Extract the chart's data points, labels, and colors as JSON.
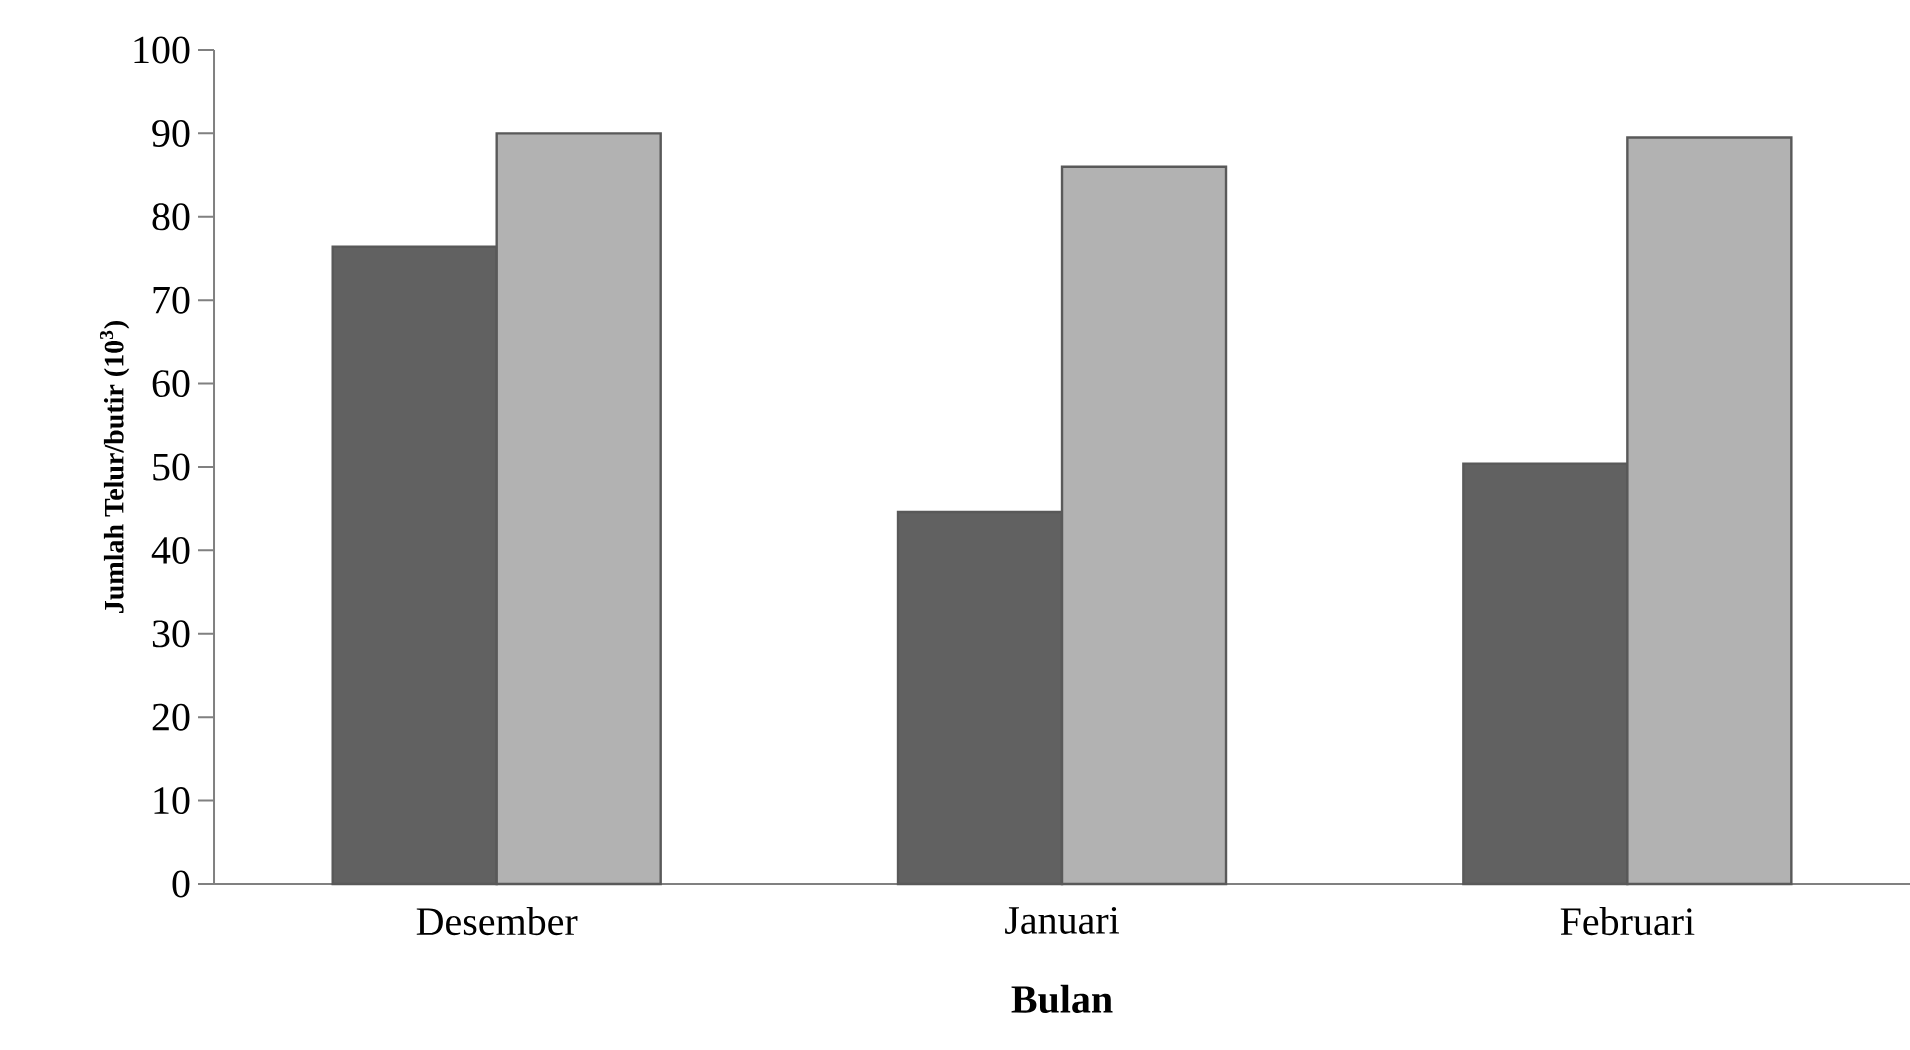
{
  "chart_data": {
    "type": "bar",
    "xlabel": "Bulan",
    "ylabel": "Jumlah Telur/butir (10$^{3}$)",
    "categories": [
      "Desember",
      "Januari",
      "Februari"
    ],
    "series": [
      {
        "color": "#616161",
        "values": [
          76.4,
          44.6,
          50.4
        ]
      },
      {
        "color": "#b2b2b2",
        "values": [
          90.0,
          86.0,
          89.5
        ]
      }
    ],
    "ylim": [
      0,
      100
    ],
    "yticks": [
      0,
      10,
      20,
      30,
      40,
      50,
      60,
      70,
      80,
      90,
      100
    ],
    "grid": false
  }
}
